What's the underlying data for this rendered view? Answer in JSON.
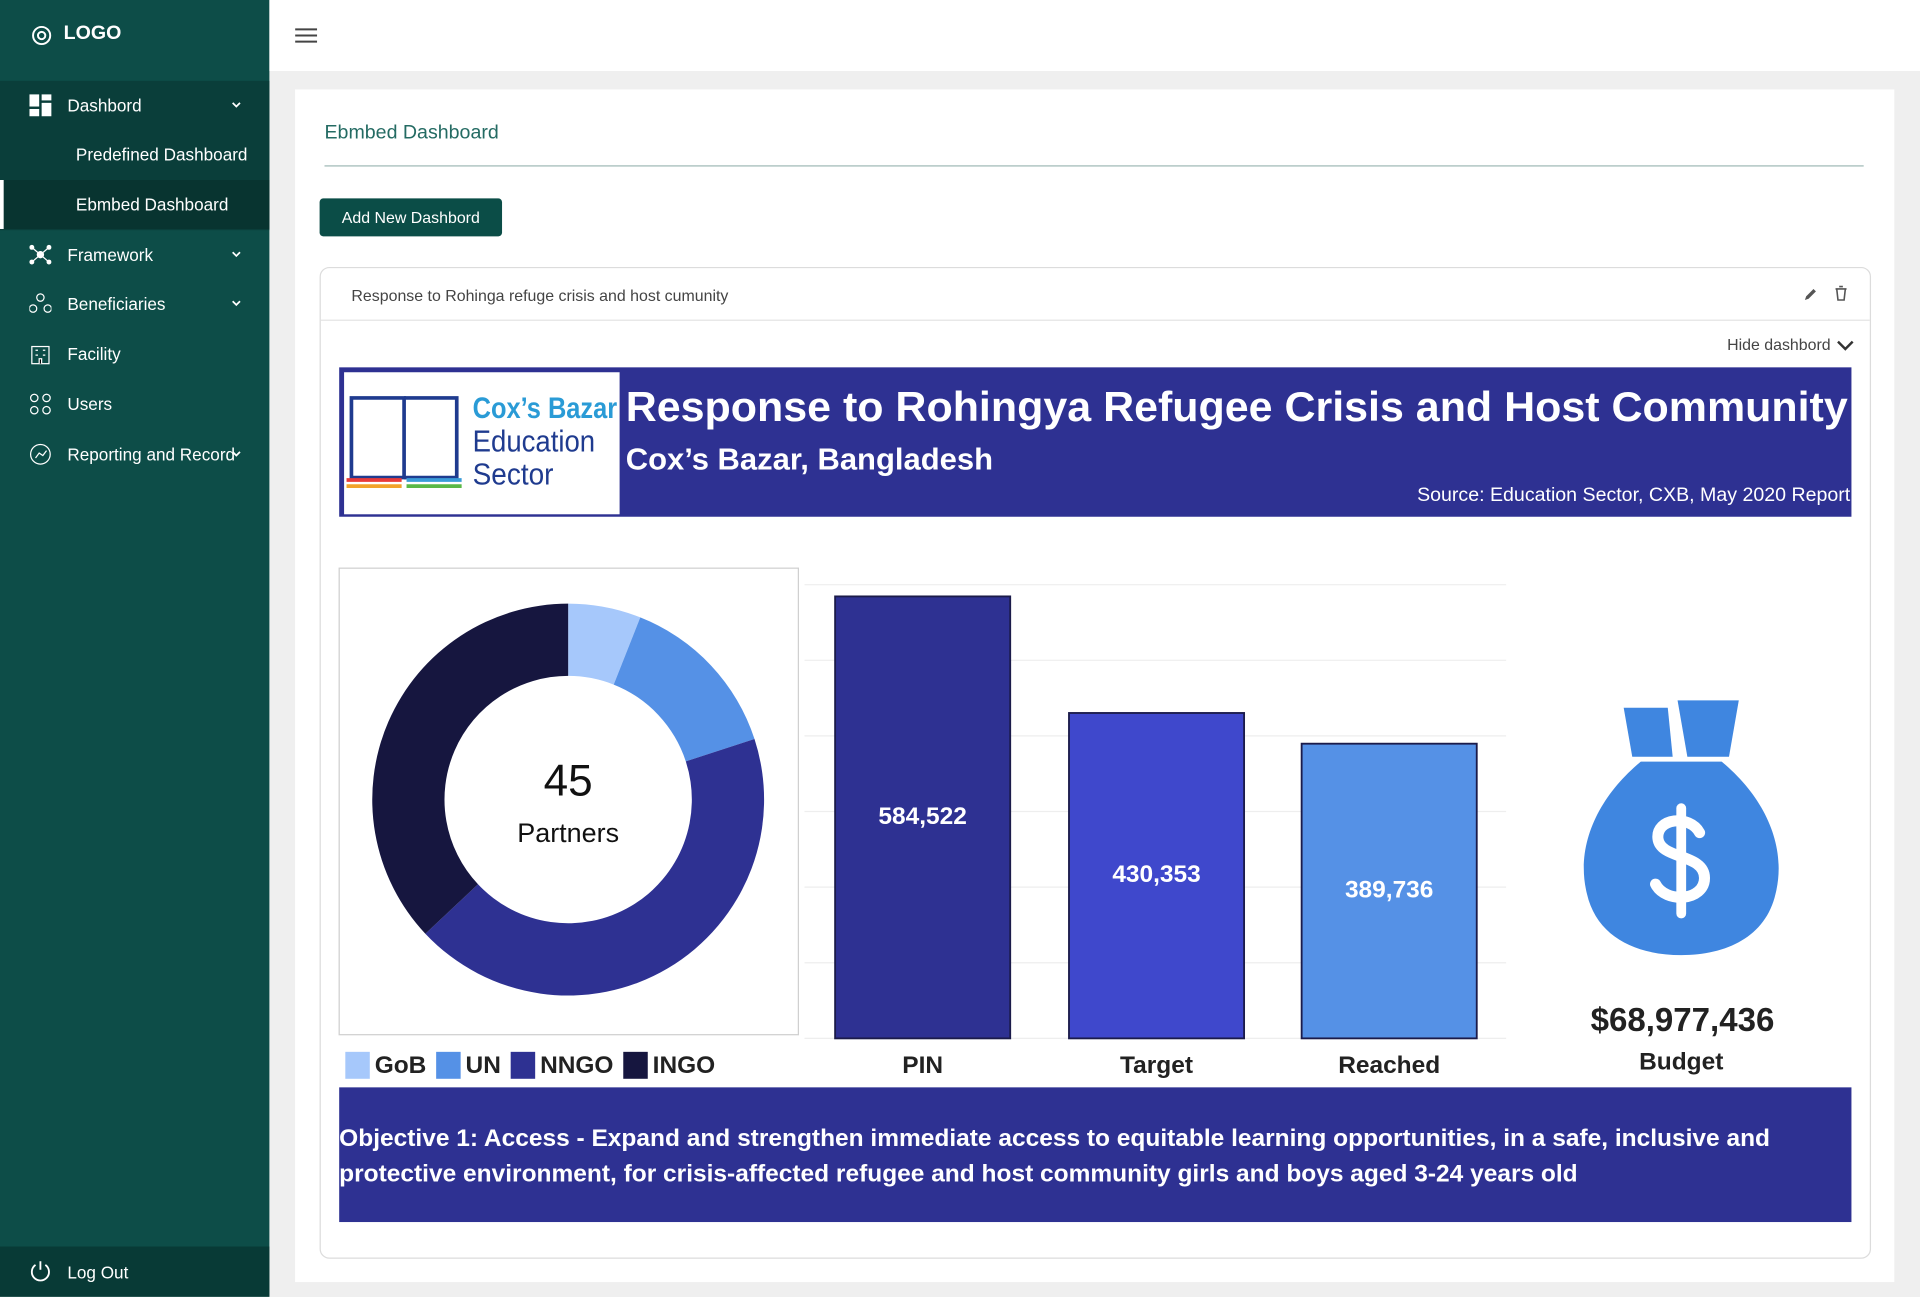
{
  "sidebar": {
    "logo": "LOGO",
    "menu": [
      {
        "label": "Dashbord",
        "children": [
          "Predefined Dashboard",
          "Ebmbed Dashboard"
        ]
      },
      {
        "label": "Framework"
      },
      {
        "label": "Beneficiaries"
      },
      {
        "label": "Facility"
      },
      {
        "label": "Users"
      },
      {
        "label": "Reporting and Record"
      }
    ],
    "logout": "Log Out"
  },
  "page": {
    "title": "Ebmbed Dashboard",
    "add_button": "Add New Dashbord",
    "panel_title": "Response to Rohinga refuge crisis and host cumunity",
    "toggle": "Hide dashbord"
  },
  "banner": {
    "logo_lines": [
      "Cox’s Bazar",
      "Education",
      "Sector"
    ],
    "title": "Response to Rohingya Refugee Crisis and Host Community",
    "subtitle": "Cox’s Bazar, Bangladesh",
    "source": "Source: Education Sector, CXB, May 2020 Report"
  },
  "chart_data": [
    {
      "type": "donut",
      "categories": [
        "GoB",
        "UN",
        "NNGO",
        "INGO"
      ],
      "values": [
        6,
        14,
        43,
        37
      ],
      "colors": [
        "#a6c8fb",
        "#5591e6",
        "#2e3192",
        "#16163f"
      ],
      "center_value": 45,
      "center_label": "Partners"
    },
    {
      "type": "bar",
      "categories": [
        "PIN",
        "Target",
        "Reached"
      ],
      "values": [
        584522,
        430353,
        389736
      ],
      "value_labels": [
        "584,522",
        "430,353",
        "389,736"
      ],
      "colors": [
        "#2e3192",
        "#3f48cc",
        "#5591e6"
      ],
      "ylim": [
        0,
        600000
      ],
      "yticks": [
        0,
        100000,
        200000,
        300000,
        400000,
        500000,
        600000
      ],
      "grid": true
    }
  ],
  "budget": {
    "amount": "$68,977,436",
    "caption": "Budget"
  },
  "objective": "Objective 1: Access - Expand and strengthen immediate access to equitable learning opportunities, in a safe, inclusive and protective environment, for crisis-affected refugee and host community girls and boys aged 3-24 years old"
}
